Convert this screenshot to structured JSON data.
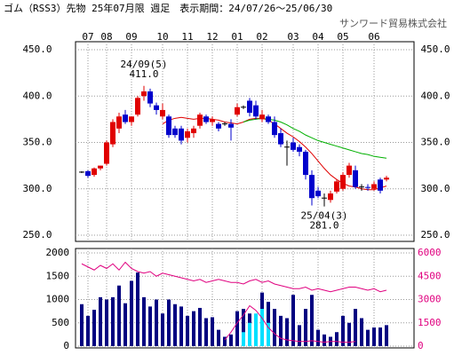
{
  "chart_data": [
    {
      "type": "candlestick",
      "title": "ゴム（RSS3）先物 25年07月限 週足　表示期間：24/07/26～25/06/30",
      "subtitle": "サンワード貿易株式会社",
      "categories": [
        null,
        "07",
        null,
        null,
        "08",
        null,
        null,
        null,
        "09",
        null,
        null,
        null,
        null,
        "10",
        null,
        null,
        null,
        "11",
        null,
        null,
        null,
        "12",
        null,
        null,
        null,
        "01",
        null,
        null,
        null,
        "02",
        null,
        null,
        null,
        null,
        "03",
        null,
        null,
        null,
        "04",
        null,
        null,
        null,
        "05",
        null,
        null,
        null,
        null,
        "06",
        null,
        null
      ],
      "ohlc": [
        [
          318,
          319,
          317,
          318
        ],
        [
          319,
          320,
          312,
          314
        ],
        [
          315,
          323,
          313,
          322
        ],
        [
          322,
          325,
          320,
          325
        ],
        [
          327,
          352,
          325,
          350
        ],
        [
          348,
          375,
          345,
          372
        ],
        [
          365,
          382,
          360,
          378
        ],
        [
          380,
          385,
          370,
          372
        ],
        [
          372,
          378,
          368,
          378
        ],
        [
          380,
          400,
          378,
          398
        ],
        [
          400,
          411,
          395,
          405
        ],
        [
          405,
          408,
          388,
          392
        ],
        [
          390,
          393,
          380,
          385
        ],
        [
          378,
          392,
          375,
          385
        ],
        [
          378,
          380,
          355,
          358
        ],
        [
          365,
          368,
          355,
          358
        ],
        [
          365,
          368,
          348,
          352
        ],
        [
          355,
          365,
          350,
          362
        ],
        [
          360,
          368,
          355,
          365
        ],
        [
          368,
          382,
          365,
          380
        ],
        [
          378,
          380,
          370,
          372
        ],
        [
          372,
          378,
          368,
          375
        ],
        [
          370,
          372,
          362,
          365
        ],
        [
          370,
          372,
          368,
          370
        ],
        [
          370,
          375,
          352,
          366
        ],
        [
          380,
          392,
          378,
          388
        ],
        [
          388,
          390,
          386,
          388
        ],
        [
          395,
          398,
          378,
          382
        ],
        [
          390,
          395,
          375,
          378
        ],
        [
          375,
          385,
          372,
          380
        ],
        [
          378,
          380,
          370,
          372
        ],
        [
          372,
          378,
          355,
          358
        ],
        [
          360,
          365,
          345,
          348
        ],
        [
          345,
          352,
          325,
          345
        ],
        [
          350,
          355,
          340,
          342
        ],
        [
          345,
          348,
          335,
          340
        ],
        [
          340,
          342,
          310,
          315
        ],
        [
          315,
          320,
          282,
          290
        ],
        [
          298,
          302,
          290,
          292
        ],
        [
          290,
          295,
          281,
          290
        ],
        [
          288,
          298,
          285,
          295
        ],
        [
          297,
          310,
          295,
          308
        ],
        [
          300,
          318,
          298,
          315
        ],
        [
          315,
          328,
          312,
          325
        ],
        [
          320,
          325,
          300,
          302
        ],
        [
          302,
          305,
          298,
          302
        ],
        [
          302,
          305,
          298,
          301
        ],
        [
          300,
          308,
          298,
          305
        ],
        [
          310,
          312,
          295,
          298
        ],
        [
          310,
          314,
          308,
          312
        ]
      ],
      "up_color": "#e00000",
      "down_color": "#0000cc",
      "lines": [
        {
          "color": "#e00000",
          "values": [
            null,
            null,
            null,
            null,
            null,
            null,
            null,
            null,
            null,
            null,
            null,
            null,
            null,
            370,
            374,
            376,
            377,
            376,
            375,
            376,
            376,
            375,
            374,
            372,
            371,
            370,
            372,
            375,
            376,
            376,
            374,
            370,
            365,
            360,
            356,
            351,
            345,
            338,
            330,
            322,
            315,
            310,
            306,
            303,
            302,
            300,
            299,
            299,
            301,
            303
          ]
        },
        {
          "color": "#00b000",
          "values": [
            null,
            null,
            null,
            null,
            null,
            null,
            null,
            null,
            null,
            null,
            null,
            null,
            null,
            null,
            null,
            null,
            null,
            null,
            null,
            null,
            null,
            null,
            null,
            null,
            null,
            null,
            372,
            374,
            375,
            376,
            375,
            374,
            372,
            369,
            365,
            362,
            358,
            355,
            352,
            350,
            348,
            346,
            344,
            342,
            340,
            338,
            337,
            335,
            334,
            333
          ]
        }
      ],
      "annotations": [
        {
          "label": "24/09(5)",
          "value": {
            "value": 411,
            "label": "411.0"
          }
        },
        {
          "label": "25/04(3)",
          "value": {
            "value": 281,
            "label": "281.0"
          }
        }
      ],
      "ylim": [
        250,
        450
      ],
      "yticks": [
        {
          "value": 250,
          "label": "250.0"
        },
        {
          "value": 300,
          "label": "300.0"
        },
        {
          "value": 350,
          "label": "350.0"
        },
        {
          "value": 400,
          "label": "400.0"
        },
        {
          "value": 450,
          "label": "450.0"
        }
      ],
      "grid": true
    },
    {
      "type": "bar",
      "series": [
        {
          "type": "bar",
          "color": "#000080",
          "values": [
            900,
            650,
            780,
            1050,
            1000,
            1050,
            1300,
            920,
            1400,
            1580,
            1050,
            850,
            1000,
            700,
            1000,
            900,
            850,
            650,
            750,
            820,
            600,
            620,
            350,
            200,
            250,
            750,
            800,
            700,
            620,
            1150,
            950,
            800,
            650,
            600,
            1100,
            450,
            800,
            1100,
            350,
            250,
            200,
            300,
            650,
            500,
            800,
            600,
            350,
            400,
            400,
            450
          ]
        },
        {
          "type": "bar",
          "color": "#00e0ff",
          "values": [
            null,
            null,
            null,
            null,
            null,
            null,
            null,
            null,
            null,
            null,
            null,
            null,
            null,
            null,
            null,
            null,
            null,
            null,
            null,
            null,
            null,
            null,
            null,
            null,
            null,
            null,
            300,
            500,
            700,
            800,
            500,
            null,
            null,
            null,
            null,
            null,
            null,
            null,
            null,
            null,
            null,
            null,
            null,
            null,
            null,
            null,
            null,
            null,
            null,
            null
          ]
        },
        {
          "type": "line",
          "axis": "y2",
          "color": "#e0007f",
          "values": [
            5300,
            5100,
            4900,
            5200,
            5000,
            5300,
            4900,
            5400,
            5000,
            4800,
            4700,
            4800,
            4500,
            4700,
            4600,
            4500,
            4400,
            4300,
            4200,
            4300,
            4100,
            4200,
            4300,
            4200,
            4100,
            4100,
            4000,
            4200,
            4300,
            4100,
            4200,
            4000,
            3900,
            3800,
            3700,
            3700,
            3800,
            3600,
            3700,
            3600,
            3500,
            3600,
            3700,
            3800,
            3800,
            3700,
            3600,
            3700,
            3500,
            3600
          ]
        },
        {
          "type": "line",
          "axis": "y2",
          "color": "#e0007f",
          "values": [
            null,
            null,
            null,
            null,
            null,
            null,
            null,
            null,
            null,
            null,
            null,
            null,
            null,
            null,
            null,
            null,
            null,
            null,
            null,
            null,
            null,
            null,
            null,
            400,
            900,
            1500,
            2000,
            2600,
            2300,
            1800,
            1200,
            800,
            500,
            400,
            350,
            300,
            300,
            350,
            300,
            250,
            300,
            300,
            250,
            250,
            300,
            null,
            null,
            null,
            null,
            null
          ]
        }
      ],
      "ylim": [
        0,
        2000
      ],
      "yticks": [
        0,
        500,
        1000,
        1500,
        2000
      ],
      "y2lim": [
        0,
        6000
      ],
      "y2ticks": [
        0,
        1500,
        3000,
        4500,
        6000
      ],
      "y2color": "#e0007f",
      "grid": true
    }
  ]
}
